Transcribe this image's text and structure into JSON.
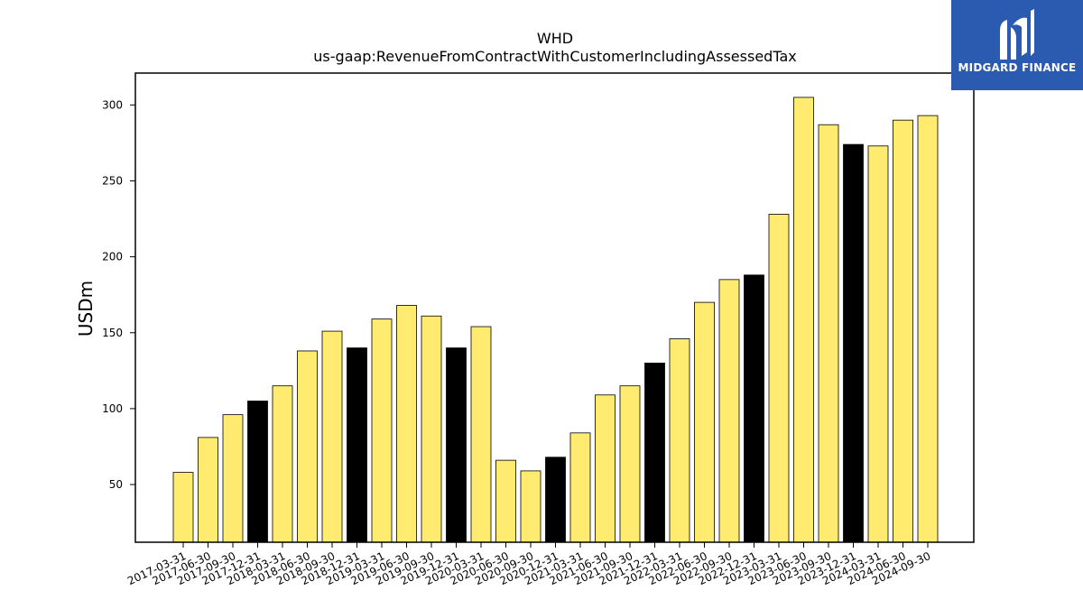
{
  "chart_data": {
    "type": "bar",
    "title": "WHD",
    "subtitle": "us-gaap:RevenueFromContractWithCustomerIncludingAssessedTax",
    "xlabel": "",
    "ylabel": "USDm",
    "ylim": [
      12,
      321
    ],
    "yticks": [
      50,
      100,
      150,
      200,
      250,
      300
    ],
    "categories": [
      "2017-03-31",
      "2017-06-30",
      "2017-09-30",
      "2017-12-31",
      "2018-03-31",
      "2018-06-30",
      "2018-09-30",
      "2018-12-31",
      "2019-03-31",
      "2019-06-30",
      "2019-09-30",
      "2019-12-31",
      "2020-03-31",
      "2020-06-30",
      "2020-09-30",
      "2020-12-31",
      "2021-03-31",
      "2021-06-30",
      "2021-09-30",
      "2021-12-31",
      "2022-03-31",
      "2022-06-30",
      "2022-09-30",
      "2022-12-31",
      "2023-03-31",
      "2023-06-30",
      "2023-09-30",
      "2023-12-31",
      "2024-03-31",
      "2024-06-30",
      "2024-09-30"
    ],
    "values": [
      58,
      81,
      96,
      105,
      115,
      138,
      151,
      140,
      159,
      168,
      161,
      140,
      154,
      66,
      59,
      68,
      84,
      109,
      115,
      130,
      146,
      170,
      185,
      188,
      228,
      305,
      287,
      274,
      273,
      290,
      293
    ],
    "highlight_categories": [
      "2017-12-31",
      "2018-12-31",
      "2019-12-31",
      "2020-12-31",
      "2021-12-31",
      "2022-12-31",
      "2023-12-31"
    ],
    "colors": {
      "bar": "#ffeb70",
      "highlight": "#000000",
      "edge": "#000000"
    },
    "grid": false,
    "legend": "none"
  },
  "logo": {
    "text": "MIDGARD FINANCE",
    "background": "#2a5bb0"
  }
}
